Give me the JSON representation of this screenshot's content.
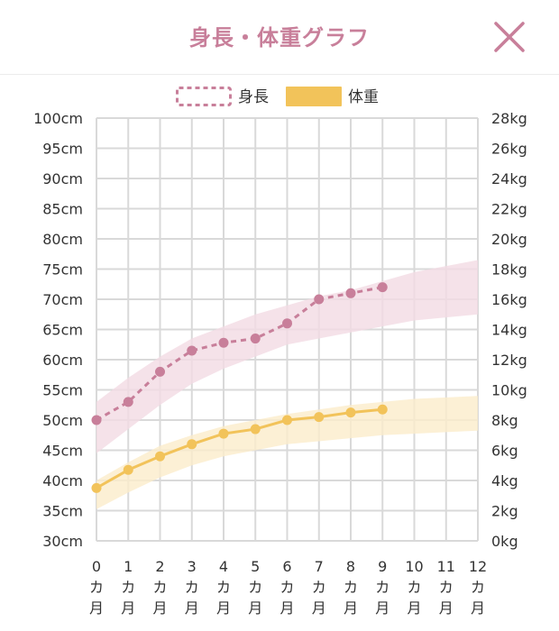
{
  "header": {
    "title": "身長・体重グラフ",
    "close_icon": "close-x-icon"
  },
  "colors": {
    "height": "#c87f9a",
    "height_band": "#f2dbe4",
    "weight": "#f2c35a",
    "weight_band": "#fbeccb",
    "grid": "#d9d9d9",
    "text": "#333333"
  },
  "chart_data": {
    "type": "line",
    "legend": [
      {
        "name": "身長",
        "style": "dashed-outline"
      },
      {
        "name": "体重",
        "style": "filled"
      }
    ],
    "legend_placement": "top-center",
    "grid": true,
    "x": [
      0,
      1,
      2,
      3,
      4,
      5,
      6,
      7,
      8,
      9,
      10,
      11,
      12
    ],
    "x_tick_labels": [
      "0\nカ\n月",
      "1\nカ\n月",
      "2\nカ\n月",
      "3\nカ\n月",
      "4\nカ\n月",
      "5\nカ\n月",
      "6\nカ\n月",
      "7\nカ\n月",
      "8\nカ\n月",
      "9\nカ\n月",
      "10\nカ\n月",
      "11\nカ\n月",
      "12\nカ\n月"
    ],
    "y_left": {
      "unit": "cm",
      "ylim": [
        30,
        100
      ],
      "ticks": [
        "100cm",
        "95cm",
        "90cm",
        "85cm",
        "80cm",
        "75cm",
        "70cm",
        "65cm",
        "60cm",
        "55cm",
        "50cm",
        "45cm",
        "40cm",
        "35cm",
        "30cm"
      ]
    },
    "y_right": {
      "unit": "kg",
      "ylim": [
        0,
        28
      ],
      "ticks": [
        "28kg",
        "26kg",
        "24kg",
        "22kg",
        "20kg",
        "18kg",
        "16kg",
        "14kg",
        "12kg",
        "10kg",
        "8kg",
        "6kg",
        "4kg",
        "2kg",
        "0kg"
      ]
    },
    "series": [
      {
        "name": "身長",
        "axis": "left",
        "x": [
          0,
          1,
          2,
          3,
          4,
          5,
          6,
          7,
          8,
          9
        ],
        "values": [
          50,
          53,
          58,
          61.5,
          62.8,
          63.5,
          66,
          70,
          71,
          72
        ]
      },
      {
        "name": "体重",
        "axis": "right",
        "x": [
          0,
          1,
          2,
          3,
          4,
          5,
          6,
          7,
          8,
          9
        ],
        "values": [
          3.5,
          4.7,
          5.6,
          6.4,
          7.1,
          7.4,
          8.0,
          8.2,
          8.5,
          8.7
        ]
      }
    ],
    "bands": [
      {
        "axis": "left",
        "x": [
          0,
          1,
          2,
          3,
          4,
          5,
          6,
          7,
          8,
          9,
          10,
          11,
          12
        ],
        "lower": [
          44.5,
          48.5,
          52.5,
          56,
          58.5,
          60.5,
          62.5,
          63.5,
          64.5,
          65.5,
          66.5,
          67,
          67.5
        ],
        "upper": [
          53,
          57,
          60.5,
          63.5,
          65.5,
          67.5,
          69,
          70.5,
          71.5,
          73,
          74.5,
          75.5,
          76.5
        ]
      },
      {
        "axis": "right",
        "x": [
          0,
          1,
          2,
          3,
          4,
          5,
          6,
          7,
          8,
          9,
          10,
          11,
          12
        ],
        "lower": [
          2.1,
          3.2,
          4.2,
          5.0,
          5.6,
          6.0,
          6.4,
          6.6,
          6.8,
          7.0,
          7.1,
          7.2,
          7.3
        ],
        "upper": [
          4.0,
          5.2,
          6.3,
          7.0,
          7.6,
          8.0,
          8.4,
          8.7,
          9.0,
          9.2,
          9.4,
          9.5,
          9.6
        ]
      }
    ]
  }
}
